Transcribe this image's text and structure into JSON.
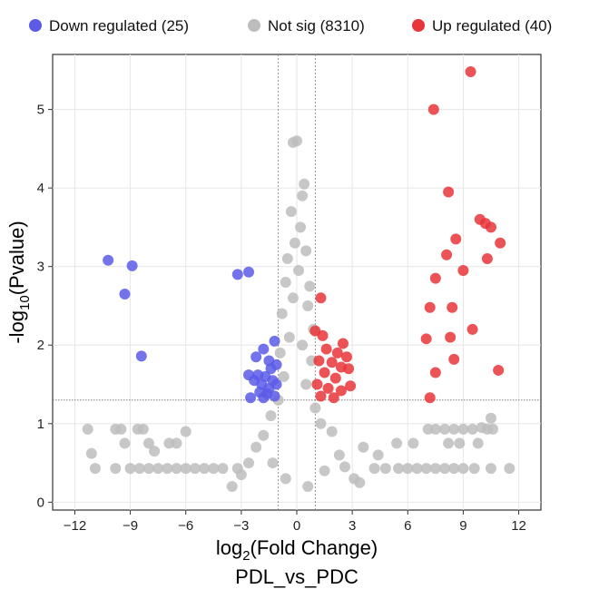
{
  "chart_data": {
    "type": "scatter",
    "subtitle": "PDL_vs_PDC",
    "xlabel": {
      "prefix": "log",
      "sub": "2",
      "suffix": "(Fold Change)"
    },
    "ylabel": {
      "prefix": "-log",
      "sub": "10",
      "suffix": "(Pvalue)"
    },
    "xlim": [
      -13.2,
      13.2
    ],
    "ylim": [
      -0.1,
      5.7
    ],
    "xticks": [
      -12,
      -9,
      -6,
      -3,
      0,
      3,
      6,
      9,
      12
    ],
    "yticks": [
      0,
      1,
      2,
      3,
      4,
      5
    ],
    "grid": true,
    "legend_position": "top",
    "thresholds": {
      "fc_lines": [
        -1,
        1
      ],
      "p_line": 1.3
    },
    "series": [
      {
        "name": "Down regulated (25)",
        "color": "#5b5be8",
        "points": [
          [
            -10.2,
            3.08
          ],
          [
            -8.9,
            3.01
          ],
          [
            -9.3,
            2.65
          ],
          [
            -8.4,
            1.86
          ],
          [
            -3.2,
            2.9
          ],
          [
            -2.6,
            2.93
          ],
          [
            -1.8,
            1.95
          ],
          [
            -1.2,
            2.05
          ],
          [
            -2.2,
            1.85
          ],
          [
            -1.5,
            1.8
          ],
          [
            -2.1,
            1.62
          ],
          [
            -1.4,
            1.7
          ],
          [
            -1.9,
            1.5
          ],
          [
            -1.3,
            1.55
          ],
          [
            -2.0,
            1.4
          ],
          [
            -1.6,
            1.38
          ],
          [
            -2.5,
            1.33
          ],
          [
            -1.1,
            1.5
          ],
          [
            -1.7,
            1.6
          ],
          [
            -1.2,
            1.35
          ],
          [
            -2.3,
            1.55
          ],
          [
            -1.5,
            1.45
          ],
          [
            -1.1,
            1.75
          ],
          [
            -1.8,
            1.33
          ],
          [
            -2.6,
            1.62
          ]
        ]
      },
      {
        "name": "Not sig (8310)",
        "color": "#bdbdbd",
        "points": [
          [
            0.0,
            4.6
          ],
          [
            -0.2,
            4.58
          ],
          [
            0.4,
            4.05
          ],
          [
            0.3,
            3.9
          ],
          [
            -0.3,
            3.7
          ],
          [
            0.2,
            3.5
          ],
          [
            -0.1,
            3.3
          ],
          [
            0.5,
            3.2
          ],
          [
            -0.5,
            3.1
          ],
          [
            0.1,
            2.95
          ],
          [
            -0.6,
            2.8
          ],
          [
            0.7,
            2.75
          ],
          [
            -0.2,
            2.6
          ],
          [
            0.6,
            2.5
          ],
          [
            -0.8,
            2.4
          ],
          [
            0.9,
            2.2
          ],
          [
            -0.4,
            2.1
          ],
          [
            0.3,
            2.0
          ],
          [
            -0.9,
            1.9
          ],
          [
            0.8,
            1.8
          ],
          [
            -0.7,
            1.6
          ],
          [
            0.5,
            1.5
          ],
          [
            -1.0,
            1.3
          ],
          [
            1.0,
            1.2
          ],
          [
            -1.4,
            1.1
          ],
          [
            1.3,
            1.0
          ],
          [
            -1.8,
            0.85
          ],
          [
            1.9,
            0.9
          ],
          [
            -2.2,
            0.7
          ],
          [
            2.3,
            0.6
          ],
          [
            -2.6,
            0.5
          ],
          [
            2.6,
            0.45
          ],
          [
            -3.0,
            0.35
          ],
          [
            3.1,
            0.3
          ],
          [
            -3.5,
            0.2
          ],
          [
            3.4,
            0.25
          ],
          [
            -0.6,
            0.3
          ],
          [
            0.6,
            0.2
          ],
          [
            -1.3,
            0.5
          ],
          [
            1.5,
            0.4
          ],
          [
            -11.3,
            0.93
          ],
          [
            -11.1,
            0.62
          ],
          [
            -10.9,
            0.43
          ],
          [
            -9.8,
            0.93
          ],
          [
            -9.5,
            0.93
          ],
          [
            -9.3,
            0.75
          ],
          [
            -8.6,
            0.93
          ],
          [
            -8.3,
            0.93
          ],
          [
            -8.0,
            0.75
          ],
          [
            -7.7,
            0.65
          ],
          [
            -6.9,
            0.75
          ],
          [
            -6.5,
            0.75
          ],
          [
            -6.0,
            0.9
          ],
          [
            -9.8,
            0.43
          ],
          [
            -9.0,
            0.43
          ],
          [
            -8.5,
            0.43
          ],
          [
            -8.0,
            0.43
          ],
          [
            -7.5,
            0.43
          ],
          [
            -7.0,
            0.43
          ],
          [
            -6.5,
            0.43
          ],
          [
            -6.0,
            0.43
          ],
          [
            -5.5,
            0.43
          ],
          [
            -5.0,
            0.43
          ],
          [
            -4.5,
            0.43
          ],
          [
            -4.0,
            0.43
          ],
          [
            -3.2,
            0.43
          ],
          [
            4.2,
            0.43
          ],
          [
            4.8,
            0.43
          ],
          [
            5.5,
            0.43
          ],
          [
            6.0,
            0.43
          ],
          [
            6.5,
            0.43
          ],
          [
            7.0,
            0.43
          ],
          [
            7.5,
            0.43
          ],
          [
            8.0,
            0.43
          ],
          [
            8.5,
            0.43
          ],
          [
            9.0,
            0.43
          ],
          [
            9.6,
            0.43
          ],
          [
            10.5,
            0.43
          ],
          [
            11.5,
            0.43
          ],
          [
            3.6,
            0.7
          ],
          [
            4.4,
            0.6
          ],
          [
            5.4,
            0.75
          ],
          [
            6.3,
            0.75
          ],
          [
            7.1,
            0.93
          ],
          [
            7.5,
            0.93
          ],
          [
            8.0,
            0.93
          ],
          [
            8.5,
            0.93
          ],
          [
            9.0,
            0.93
          ],
          [
            9.5,
            0.93
          ],
          [
            8.2,
            0.75
          ],
          [
            8.8,
            0.75
          ],
          [
            9.8,
            0.75
          ],
          [
            10.3,
            0.93
          ],
          [
            10.6,
            0.93
          ],
          [
            10.5,
            1.07
          ],
          [
            10.0,
            0.95
          ]
        ]
      },
      {
        "name": "Up regulated (40)",
        "color": "#e8353a",
        "points": [
          [
            9.4,
            5.48
          ],
          [
            7.4,
            5.0
          ],
          [
            8.2,
            3.95
          ],
          [
            9.9,
            3.6
          ],
          [
            10.2,
            3.55
          ],
          [
            10.5,
            3.5
          ],
          [
            8.6,
            3.35
          ],
          [
            8.1,
            3.15
          ],
          [
            10.3,
            3.1
          ],
          [
            11.0,
            3.3
          ],
          [
            9.0,
            2.95
          ],
          [
            7.5,
            2.85
          ],
          [
            7.2,
            2.48
          ],
          [
            8.4,
            2.48
          ],
          [
            8.3,
            2.1
          ],
          [
            9.5,
            2.2
          ],
          [
            7.0,
            2.08
          ],
          [
            8.5,
            1.82
          ],
          [
            7.5,
            1.65
          ],
          [
            10.9,
            1.68
          ],
          [
            7.2,
            1.33
          ],
          [
            1.3,
            2.6
          ],
          [
            1.0,
            2.18
          ],
          [
            1.4,
            2.12
          ],
          [
            2.5,
            2.02
          ],
          [
            1.6,
            1.95
          ],
          [
            2.2,
            1.9
          ],
          [
            2.7,
            1.85
          ],
          [
            1.2,
            1.8
          ],
          [
            1.9,
            1.78
          ],
          [
            2.4,
            1.72
          ],
          [
            1.5,
            1.65
          ],
          [
            2.8,
            1.7
          ],
          [
            2.1,
            1.58
          ],
          [
            1.1,
            1.5
          ],
          [
            1.7,
            1.45
          ],
          [
            2.4,
            1.42
          ],
          [
            1.3,
            1.35
          ],
          [
            2.9,
            1.48
          ],
          [
            2.0,
            1.33
          ]
        ]
      }
    ]
  }
}
